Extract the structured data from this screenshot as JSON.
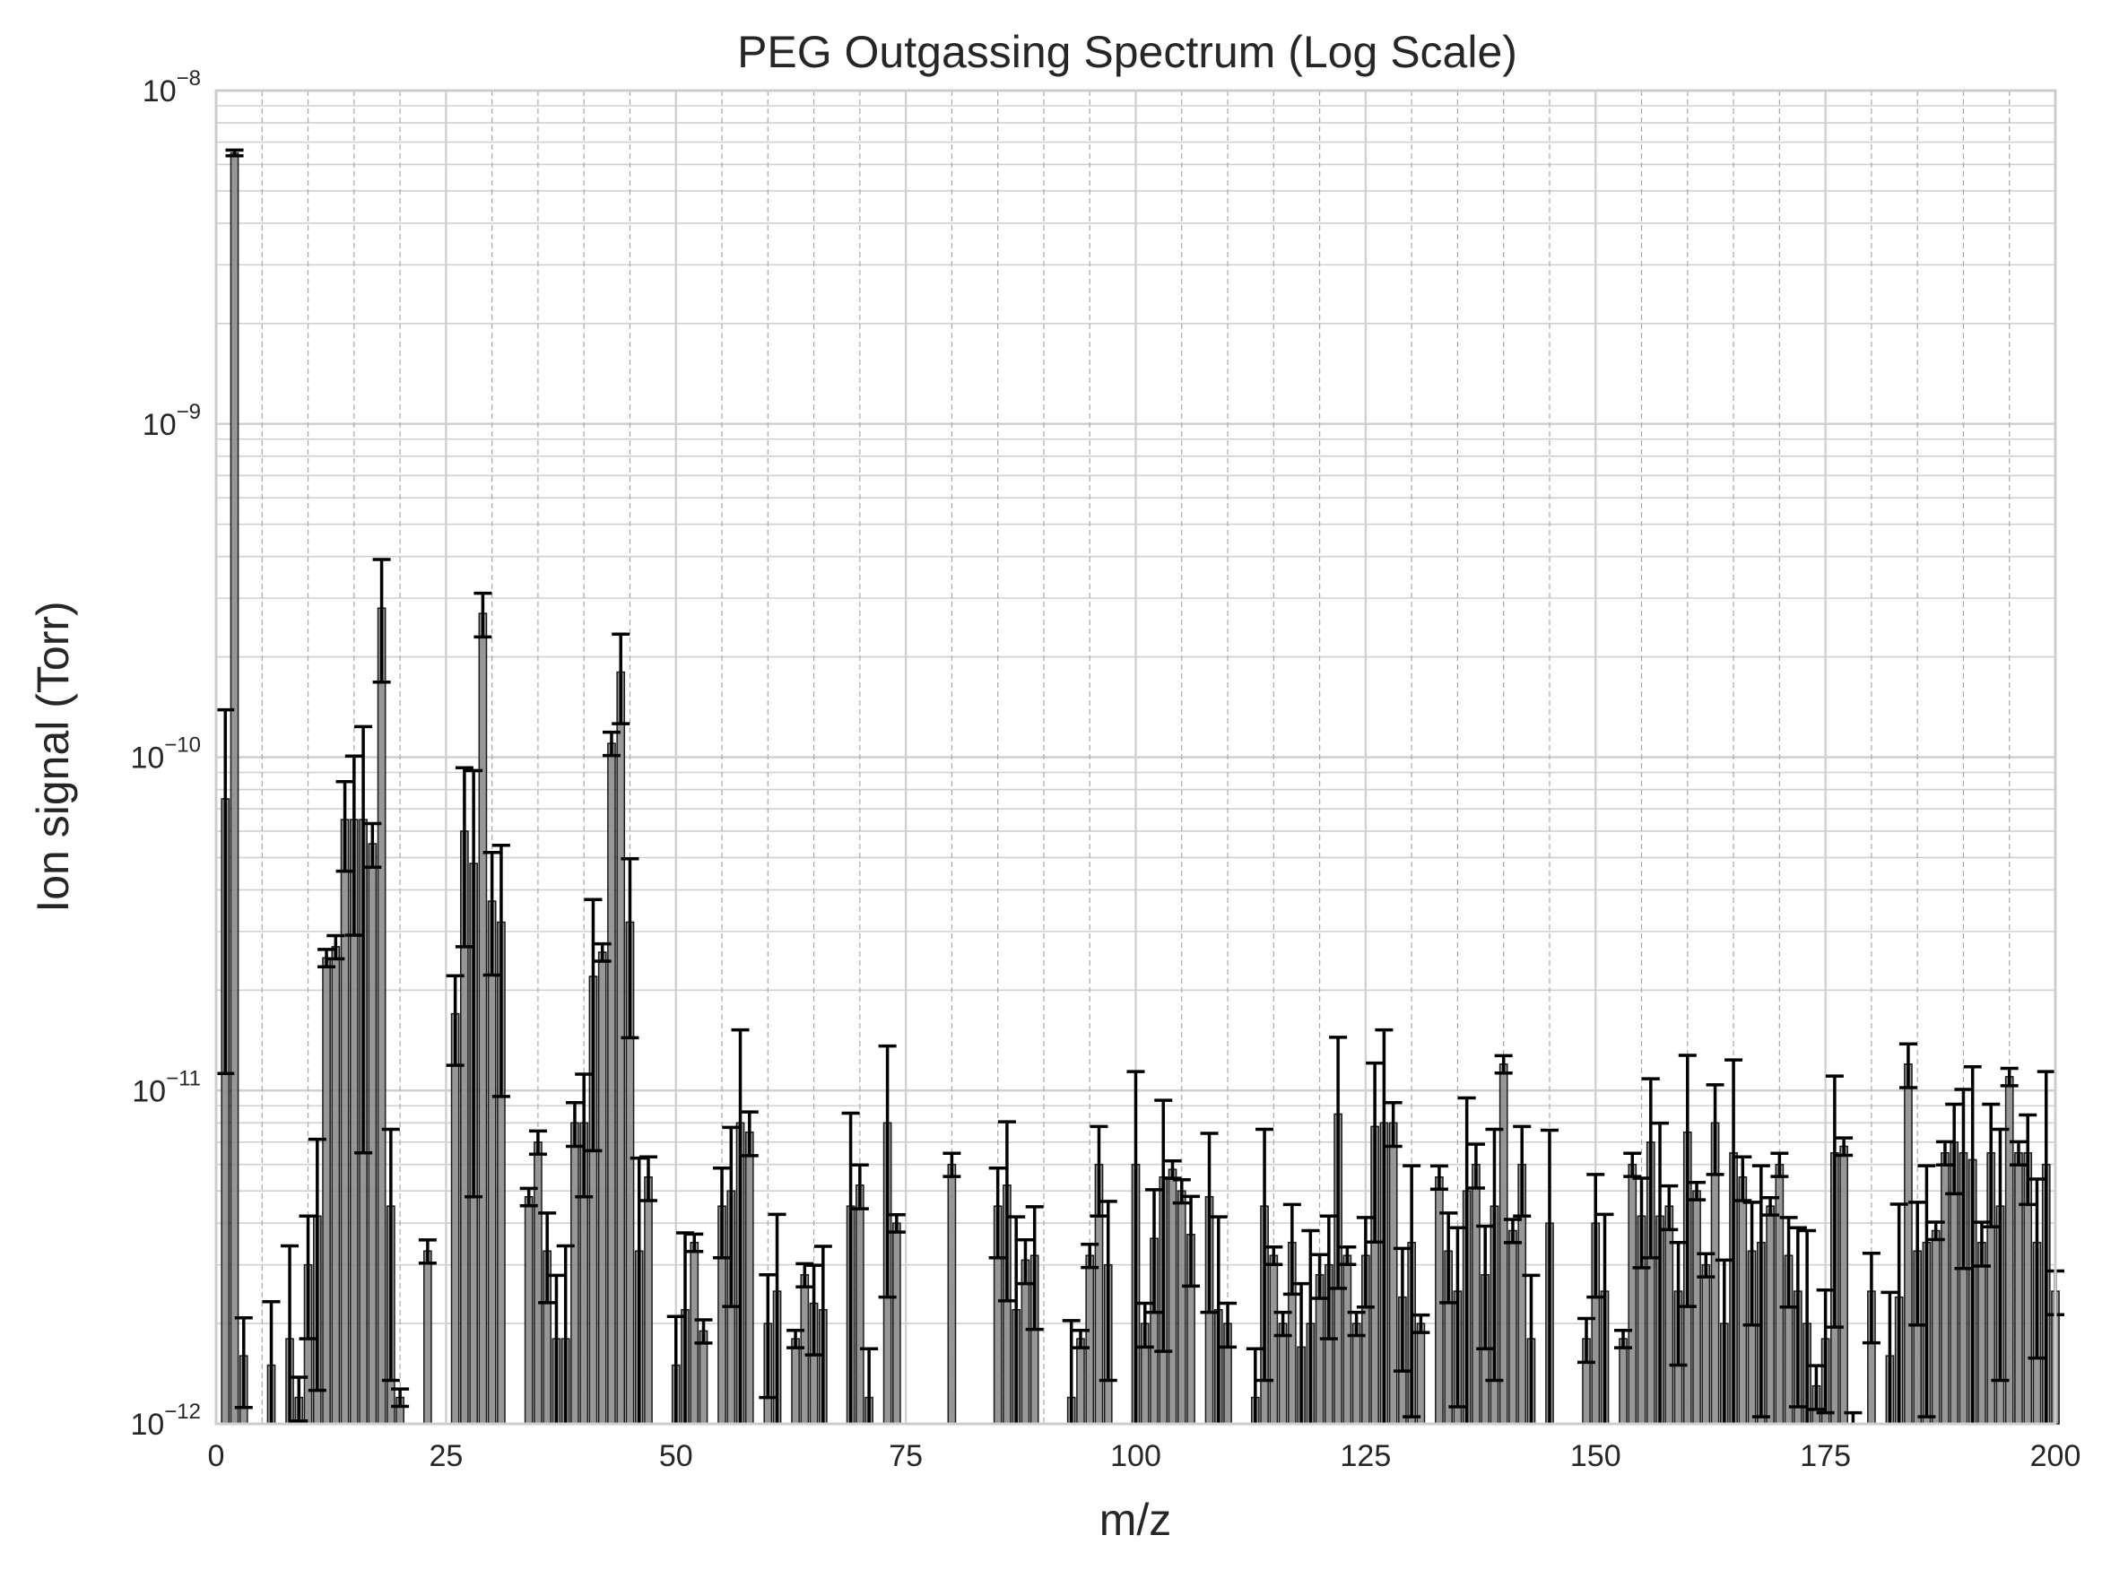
{
  "chart_data": {
    "type": "bar",
    "title": "PEG Outgassing Spectrum (Log Scale)",
    "xlabel": "m/z",
    "ylabel": "Ion signal (Torr)",
    "xlim": [
      0,
      200
    ],
    "ylim": [
      1e-12,
      1e-08
    ],
    "yscale": "log",
    "grid": true,
    "x_ticks": [
      0,
      25,
      50,
      75,
      100,
      125,
      150,
      175,
      200
    ],
    "y_ticks": [
      {
        "base": "10",
        "exp": "−12",
        "value": 1e-12
      },
      {
        "base": "10",
        "exp": "−11",
        "value": 1e-11
      },
      {
        "base": "10",
        "exp": "−10",
        "value": 1e-10
      },
      {
        "base": "10",
        "exp": "−9",
        "value": 1e-09
      },
      {
        "base": "10",
        "exp": "−8",
        "value": 1e-08
      }
    ],
    "bar_color": "#8c8c8c",
    "bar_edge_color": "#1a1a1a",
    "error_color": "#000000",
    "series": [
      {
        "x": [
          1,
          2,
          3,
          6,
          8,
          9,
          10,
          11,
          12,
          13,
          14,
          15,
          16,
          17,
          18,
          19,
          20,
          23,
          26,
          27,
          28,
          29,
          30,
          31,
          34,
          35,
          36,
          37,
          38,
          39,
          40,
          41,
          42,
          43,
          44,
          45,
          46,
          47,
          50,
          51,
          52,
          53,
          55,
          56,
          57,
          58,
          60,
          61,
          63,
          64,
          65,
          66,
          69,
          70,
          71,
          73,
          74,
          80,
          85,
          86,
          87,
          88,
          89,
          93,
          94,
          95,
          96,
          97,
          100,
          101,
          102,
          103,
          104,
          105,
          106,
          108,
          109,
          110,
          113,
          114,
          115,
          116,
          117,
          118,
          119,
          120,
          121,
          122,
          123,
          124,
          125,
          126,
          127,
          128,
          129,
          130,
          131,
          133,
          134,
          135,
          136,
          137,
          138,
          139,
          140,
          141,
          142,
          143,
          145,
          149,
          150,
          151,
          153,
          154,
          155,
          156,
          157,
          158,
          159,
          160,
          161,
          162,
          163,
          164,
          165,
          166,
          167,
          168,
          169,
          170,
          171,
          172,
          173,
          174,
          175,
          176,
          177,
          178,
          180,
          182,
          183,
          184,
          185,
          186,
          187,
          188,
          189,
          190,
          191,
          192,
          193,
          194,
          195,
          196,
          197,
          198,
          199,
          200
        ],
        "values": [
          7.5e-11,
          6.5e-09,
          1.6e-12,
          1.5e-12,
          1.8e-12,
          1.2e-12,
          3e-12,
          4.2e-12,
          2.5e-11,
          2.7e-11,
          6.5e-11,
          6.5e-11,
          6.5e-11,
          5.5e-11,
          2.8e-10,
          4.5e-12,
          1.2e-12,
          3.3e-12,
          1.7e-11,
          6e-11,
          4.8e-11,
          2.7e-10,
          3.7e-11,
          3.2e-11,
          4.8e-12,
          7e-12,
          3.3e-12,
          1.8e-12,
          1.8e-12,
          8e-12,
          8e-12,
          2.2e-11,
          2.6e-11,
          1.1e-10,
          1.8e-10,
          3.2e-11,
          3.3e-12,
          5.5e-12,
          1.5e-12,
          2.2e-12,
          3.5e-12,
          1.9e-12,
          4.5e-12,
          5e-12,
          8e-12,
          7.5e-12,
          2e-12,
          2.5e-12,
          1.8e-12,
          2.8e-12,
          2.3e-12,
          2.2e-12,
          4.5e-12,
          5.2e-12,
          1.2e-12,
          8e-12,
          4e-12,
          6e-12,
          4.5e-12,
          5.2e-12,
          2.2e-12,
          3.1e-12,
          3.2e-12,
          1.2e-12,
          1.8e-12,
          3.2e-12,
          6e-12,
          3e-12,
          6e-12,
          2e-12,
          3.6e-12,
          5.5e-12,
          5.8e-12,
          5e-12,
          3.7e-12,
          4.8e-12,
          2.2e-12,
          2e-12,
          1.2e-12,
          4.5e-12,
          3.2e-12,
          2e-12,
          3.5e-12,
          1.7e-12,
          2e-12,
          2.8e-12,
          3e-12,
          8.5e-12,
          3.2e-12,
          2e-12,
          3.2e-12,
          7.8e-12,
          8e-12,
          8e-12,
          2.4e-12,
          3.5e-12,
          2e-12,
          5.5e-12,
          3.3e-12,
          2.5e-12,
          5e-12,
          6e-12,
          2.8e-12,
          4.5e-12,
          1.2e-11,
          3.8e-12,
          6e-12,
          1.8e-12,
          4e-12,
          1.8e-12,
          4e-12,
          2.5e-12,
          1.8e-12,
          6e-12,
          4.2e-12,
          7e-12,
          4.2e-12,
          4.5e-12,
          2.5e-12,
          7.5e-12,
          5e-12,
          3e-12,
          8e-12,
          2e-12,
          6.5e-12,
          5.5e-12,
          3.3e-12,
          3.5e-12,
          4.5e-12,
          6e-12,
          3.2e-12,
          2.5e-12,
          2e-12,
          1.3e-12,
          1.8e-12,
          6.5e-12,
          6.8e-12,
          1e-12,
          2.5e-12,
          1.6e-12,
          2.4e-12,
          1.2e-11,
          3.3e-12,
          3.5e-12,
          3.8e-12,
          6.5e-12,
          7e-12,
          6.5e-12,
          6.2e-12,
          3.5e-12,
          6.5e-12,
          4.5e-12,
          1.1e-11,
          6.5e-12,
          6.5e-12,
          3.5e-12,
          6e-12,
          2.5e-12
        ]
      }
    ]
  }
}
